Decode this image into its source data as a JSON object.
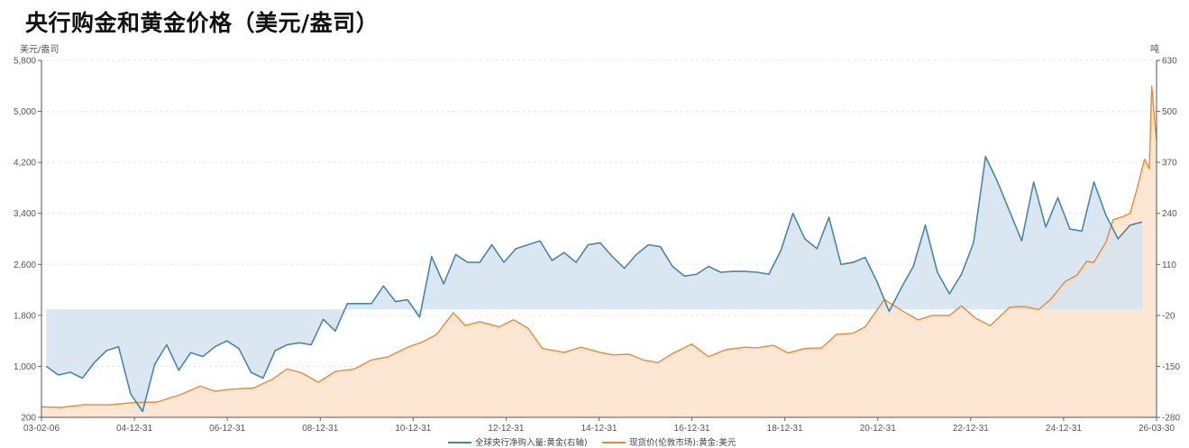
{
  "chart_data": {
    "type": "line",
    "title": "央行购金和黄金价格（美元/盎司）",
    "left_unit": "美元/盎司",
    "right_unit": "吨",
    "left_ylim": [
      200,
      5800
    ],
    "right_ylim": [
      -280,
      630
    ],
    "left_ticks": [
      "200",
      "1,000",
      "1,800",
      "2,600",
      "3,400",
      "4,200",
      "5,000",
      "5,800"
    ],
    "right_ticks": [
      "-280",
      "-150",
      "-20",
      "110",
      "240",
      "370",
      "500",
      "630"
    ],
    "x_tick_labels": [
      "03-02-06",
      "04-12-31",
      "06-12-31",
      "08-12-31",
      "10-12-31",
      "12-12-31",
      "14-12-31",
      "16-12-31",
      "18-12-31",
      "20-12-31",
      "22-12-31",
      "24-12-31",
      "26-03-30"
    ],
    "x_range": [
      2003.1,
      2026.25
    ],
    "grid": true,
    "series": [
      {
        "name": "全球央行净购入量:黄金(右轴)",
        "axis": "right",
        "color": "#4a86a8",
        "fill": "#d3e3ed",
        "baseline": -5,
        "points": [
          [
            2003.2,
            -150
          ],
          [
            2003.45,
            -172
          ],
          [
            2003.7,
            -165
          ],
          [
            2003.95,
            -180
          ],
          [
            2004.2,
            -140
          ],
          [
            2004.45,
            -110
          ],
          [
            2004.7,
            -100
          ],
          [
            2004.95,
            -220
          ],
          [
            2005.2,
            -265
          ],
          [
            2005.45,
            -145
          ],
          [
            2005.7,
            -95
          ],
          [
            2005.95,
            -160
          ],
          [
            2006.2,
            -115
          ],
          [
            2006.45,
            -125
          ],
          [
            2006.7,
            -100
          ],
          [
            2006.95,
            -85
          ],
          [
            2007.2,
            -105
          ],
          [
            2007.45,
            -165
          ],
          [
            2007.7,
            -180
          ],
          [
            2007.95,
            -110
          ],
          [
            2008.2,
            -95
          ],
          [
            2008.45,
            -90
          ],
          [
            2008.7,
            -95
          ],
          [
            2008.95,
            -30
          ],
          [
            2009.2,
            -60
          ],
          [
            2009.45,
            10
          ],
          [
            2009.7,
            10
          ],
          [
            2009.95,
            10
          ],
          [
            2010.2,
            55
          ],
          [
            2010.45,
            15
          ],
          [
            2010.7,
            20
          ],
          [
            2010.95,
            -25
          ],
          [
            2011.2,
            130
          ],
          [
            2011.45,
            60
          ],
          [
            2011.7,
            135
          ],
          [
            2011.95,
            115
          ],
          [
            2012.2,
            115
          ],
          [
            2012.45,
            160
          ],
          [
            2012.7,
            115
          ],
          [
            2012.95,
            150
          ],
          [
            2013.2,
            160
          ],
          [
            2013.45,
            170
          ],
          [
            2013.7,
            120
          ],
          [
            2013.95,
            140
          ],
          [
            2014.2,
            115
          ],
          [
            2014.45,
            160
          ],
          [
            2014.7,
            165
          ],
          [
            2014.95,
            130
          ],
          [
            2015.2,
            100
          ],
          [
            2015.45,
            135
          ],
          [
            2015.7,
            160
          ],
          [
            2015.95,
            155
          ],
          [
            2016.2,
            105
          ],
          [
            2016.45,
            80
          ],
          [
            2016.7,
            85
          ],
          [
            2016.95,
            105
          ],
          [
            2017.2,
            90
          ],
          [
            2017.45,
            92
          ],
          [
            2017.7,
            92
          ],
          [
            2017.95,
            90
          ],
          [
            2018.2,
            85
          ],
          [
            2018.45,
            145
          ],
          [
            2018.7,
            240
          ],
          [
            2018.95,
            175
          ],
          [
            2019.2,
            150
          ],
          [
            2019.45,
            230
          ],
          [
            2019.7,
            110
          ],
          [
            2019.95,
            115
          ],
          [
            2020.2,
            128
          ],
          [
            2020.45,
            65
          ],
          [
            2020.7,
            -10
          ],
          [
            2020.95,
            50
          ],
          [
            2021.2,
            105
          ],
          [
            2021.45,
            210
          ],
          [
            2021.7,
            90
          ],
          [
            2021.95,
            35
          ],
          [
            2022.2,
            85
          ],
          [
            2022.45,
            165
          ],
          [
            2022.7,
            385
          ],
          [
            2022.95,
            320
          ],
          [
            2023.2,
            245
          ],
          [
            2023.45,
            170
          ],
          [
            2023.7,
            320
          ],
          [
            2023.95,
            205
          ],
          [
            2024.2,
            280
          ],
          [
            2024.45,
            200
          ],
          [
            2024.7,
            195
          ],
          [
            2024.95,
            320
          ],
          [
            2025.2,
            235
          ],
          [
            2025.45,
            175
          ],
          [
            2025.7,
            210
          ],
          [
            2025.95,
            218
          ]
        ]
      },
      {
        "name": "现货价(伦敦市场):黄金:美元",
        "axis": "left",
        "color": "#f0882a",
        "fill": "#fce3cf",
        "points": [
          [
            2003.1,
            365
          ],
          [
            2003.5,
            355
          ],
          [
            2004.0,
            400
          ],
          [
            2004.5,
            395
          ],
          [
            2005.0,
            430
          ],
          [
            2005.5,
            440
          ],
          [
            2006.0,
            560
          ],
          [
            2006.4,
            690
          ],
          [
            2006.7,
            610
          ],
          [
            2007.0,
            640
          ],
          [
            2007.5,
            660
          ],
          [
            2007.9,
            800
          ],
          [
            2008.2,
            960
          ],
          [
            2008.5,
            900
          ],
          [
            2008.85,
            750
          ],
          [
            2009.2,
            920
          ],
          [
            2009.6,
            960
          ],
          [
            2009.95,
            1100
          ],
          [
            2010.3,
            1150
          ],
          [
            2010.7,
            1300
          ],
          [
            2011.0,
            1380
          ],
          [
            2011.3,
            1500
          ],
          [
            2011.65,
            1840
          ],
          [
            2011.9,
            1640
          ],
          [
            2012.2,
            1700
          ],
          [
            2012.6,
            1620
          ],
          [
            2012.9,
            1730
          ],
          [
            2013.2,
            1600
          ],
          [
            2013.5,
            1280
          ],
          [
            2013.95,
            1220
          ],
          [
            2014.3,
            1300
          ],
          [
            2014.7,
            1220
          ],
          [
            2014.95,
            1180
          ],
          [
            2015.3,
            1190
          ],
          [
            2015.6,
            1100
          ],
          [
            2015.9,
            1060
          ],
          [
            2016.2,
            1200
          ],
          [
            2016.6,
            1350
          ],
          [
            2016.95,
            1150
          ],
          [
            2017.3,
            1260
          ],
          [
            2017.7,
            1300
          ],
          [
            2017.95,
            1290
          ],
          [
            2018.3,
            1330
          ],
          [
            2018.6,
            1210
          ],
          [
            2018.95,
            1280
          ],
          [
            2019.3,
            1290
          ],
          [
            2019.6,
            1500
          ],
          [
            2019.95,
            1520
          ],
          [
            2020.2,
            1620
          ],
          [
            2020.6,
            2050
          ],
          [
            2020.95,
            1880
          ],
          [
            2021.3,
            1730
          ],
          [
            2021.6,
            1800
          ],
          [
            2021.95,
            1800
          ],
          [
            2022.2,
            1950
          ],
          [
            2022.5,
            1750
          ],
          [
            2022.8,
            1640
          ],
          [
            2023.2,
            1930
          ],
          [
            2023.5,
            1940
          ],
          [
            2023.8,
            1890
          ],
          [
            2024.05,
            2050
          ],
          [
            2024.35,
            2330
          ],
          [
            2024.6,
            2430
          ],
          [
            2024.8,
            2650
          ],
          [
            2024.95,
            2630
          ],
          [
            2025.2,
            2950
          ],
          [
            2025.35,
            3300
          ],
          [
            2025.55,
            3350
          ],
          [
            2025.7,
            3400
          ],
          [
            2025.85,
            3800
          ],
          [
            2026.0,
            4250
          ],
          [
            2026.1,
            4100
          ],
          [
            2026.15,
            5400
          ],
          [
            2026.2,
            4950
          ],
          [
            2026.25,
            4550
          ]
        ]
      }
    ]
  },
  "legend": [
    {
      "label": "全球央行净购入量:黄金(右轴)",
      "color": "#4a86a8"
    },
    {
      "label": "现货价(伦敦市场):黄金:美元",
      "color": "#f0882a"
    }
  ]
}
